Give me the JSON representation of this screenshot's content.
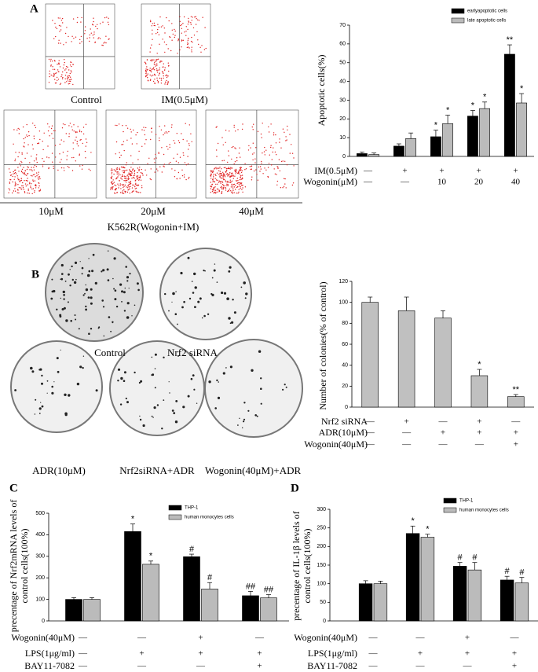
{
  "figure_images": {
    "A": {
      "labels": [
        "Control",
        "IM(0.5μM)",
        "10μM",
        "20μM",
        "40μM"
      ],
      "group_label": "K562R(Wogonin+IM)"
    },
    "B": {
      "labels": [
        "Control",
        "Nrf2 siRNA",
        "ADR(10μM)",
        "Nrf2siRNA+ADR",
        "Wogonin(40μM)+ADR"
      ]
    }
  },
  "chart_data": [
    {
      "type": "bar",
      "panel": "A",
      "ylabel": [
        "Apoptotic cells(%)"
      ],
      "ylim": [
        0,
        70
      ],
      "yticks": [
        0,
        10,
        20,
        30,
        40,
        50,
        60,
        70
      ],
      "series": [
        {
          "name": "earlyapoptotic cells",
          "color": "#000000",
          "values": [
            1.5,
            5.5,
            10.5,
            21.5,
            54.5
          ],
          "errors": [
            0.8,
            1.2,
            3.5,
            3,
            5
          ],
          "annotations": [
            null,
            null,
            "*",
            "*",
            "**"
          ]
        },
        {
          "name": "late apoptotic cells",
          "color": "#bbbbbb",
          "values": [
            1,
            9.5,
            17.5,
            25.5,
            28.5
          ],
          "errors": [
            0.8,
            3,
            4.5,
            3.5,
            5
          ],
          "annotations": [
            null,
            null,
            "*",
            "*",
            "*"
          ]
        }
      ],
      "rows": [
        {
          "label": "IM(0.5μM)",
          "values": [
            "—",
            "+",
            "+",
            "+",
            "+"
          ]
        },
        {
          "label": "Wogonin(μM)",
          "values": [
            "—",
            "—",
            "10",
            "20",
            "40"
          ]
        }
      ]
    },
    {
      "type": "bar",
      "panel": "B",
      "ylabel": [
        "Number of colonies(% of control)"
      ],
      "ylim": [
        0,
        120
      ],
      "yticks": [
        0,
        20,
        40,
        60,
        80,
        100,
        120
      ],
      "series": [
        {
          "color": "#c0c0c0",
          "values": [
            100,
            92,
            85,
            30,
            10
          ],
          "errors": [
            5,
            13,
            7,
            6,
            2
          ],
          "annotations": [
            null,
            null,
            null,
            "*",
            "**"
          ]
        }
      ],
      "rows": [
        {
          "label": "Nrf2 siRNA",
          "values": [
            "—",
            "+",
            "—",
            "+",
            "—"
          ]
        },
        {
          "label": "ADR(10μM)",
          "values": [
            "—",
            "—",
            "+",
            "+",
            "+"
          ]
        },
        {
          "label": "Wogonin(40μM)",
          "values": [
            "—",
            "—",
            "—",
            "—",
            "+"
          ]
        }
      ]
    },
    {
      "type": "bar",
      "panel": "C",
      "ylabel": [
        "precentage of Nrf2mRNA levels of",
        "control cells(100%)"
      ],
      "ylim": [
        0,
        500
      ],
      "yticks": [
        0,
        100,
        200,
        300,
        400,
        500
      ],
      "series": [
        {
          "name": "THP-1",
          "color": "#000000",
          "values": [
            100,
            415,
            298,
            117
          ],
          "errors": [
            8,
            35,
            12,
            20
          ],
          "annotations": [
            null,
            "*",
            "#",
            "##"
          ]
        },
        {
          "name": "human monocytes cells",
          "color": "#bbbbbb",
          "values": [
            100,
            263,
            148,
            107
          ],
          "errors": [
            8,
            15,
            30,
            15
          ],
          "annotations": [
            null,
            "*",
            "#",
            "##"
          ]
        }
      ],
      "rows": [
        {
          "label": "Wogonin(40μM)",
          "values": [
            "—",
            "—",
            "+",
            "—"
          ]
        },
        {
          "label": "LPS(1μg/ml)",
          "values": [
            "—",
            "+",
            "+",
            "+"
          ]
        },
        {
          "label": "BAY11-7082",
          "values": [
            "—",
            "—",
            "—",
            "+"
          ]
        }
      ]
    },
    {
      "type": "bar",
      "panel": "D",
      "ylabel": [
        "precentage of IL-1β levels of",
        "control cells(100%)"
      ],
      "ylim": [
        0,
        300
      ],
      "yticks": [
        0,
        50,
        100,
        150,
        200,
        250,
        300
      ],
      "series": [
        {
          "name": "THP-1",
          "color": "#000000",
          "values": [
            100,
            235,
            147,
            110
          ],
          "errors": [
            8,
            20,
            10,
            10
          ],
          "annotations": [
            null,
            "*",
            "#",
            "#"
          ]
        },
        {
          "name": "human monocytes cells",
          "color": "#bbbbbb",
          "values": [
            100,
            225,
            137,
            102
          ],
          "errors": [
            7,
            8,
            20,
            15
          ],
          "annotations": [
            null,
            "*",
            "#",
            "#"
          ]
        }
      ],
      "rows": [
        {
          "label": "Wogonin(40μM)",
          "values": [
            "—",
            "—",
            "+",
            "—"
          ]
        },
        {
          "label": "LPS(1μg/ml)",
          "values": [
            "—",
            "+",
            "+",
            "+"
          ]
        },
        {
          "label": "BAY11-7082",
          "values": [
            "—",
            "—",
            "—",
            "+"
          ]
        }
      ]
    }
  ]
}
